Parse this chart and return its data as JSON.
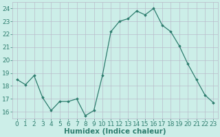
{
  "x": [
    0,
    1,
    2,
    3,
    4,
    5,
    6,
    7,
    8,
    9,
    10,
    11,
    12,
    13,
    14,
    15,
    16,
    17,
    18,
    19,
    20,
    21,
    22,
    23
  ],
  "y": [
    18.5,
    18.1,
    18.8,
    17.1,
    16.1,
    16.8,
    16.8,
    17.0,
    15.7,
    16.1,
    18.8,
    22.2,
    23.0,
    23.2,
    23.8,
    23.5,
    24.0,
    22.7,
    22.2,
    21.1,
    19.7,
    18.5,
    17.3,
    16.7
  ],
  "line_color": "#2d7d6e",
  "marker_color": "#2d7d6e",
  "bg_color": "#cceee8",
  "plot_bg_color": "#cceee8",
  "grid_color": "#b8b8c8",
  "xlabel": "Humidex (Indice chaleur)",
  "ylabel_ticks": [
    16,
    17,
    18,
    19,
    20,
    21,
    22,
    23,
    24
  ],
  "xtick_labels": [
    "0",
    "1",
    "2",
    "3",
    "4",
    "5",
    "6",
    "7",
    "8",
    "9",
    "10",
    "11",
    "12",
    "13",
    "14",
    "15",
    "16",
    "17",
    "18",
    "19",
    "20",
    "21",
    "22",
    "23"
  ],
  "ylim": [
    15.5,
    24.5
  ],
  "xlim": [
    -0.5,
    23.5
  ],
  "xlabel_fontsize": 7.5,
  "tick_fontsize": 6.5
}
